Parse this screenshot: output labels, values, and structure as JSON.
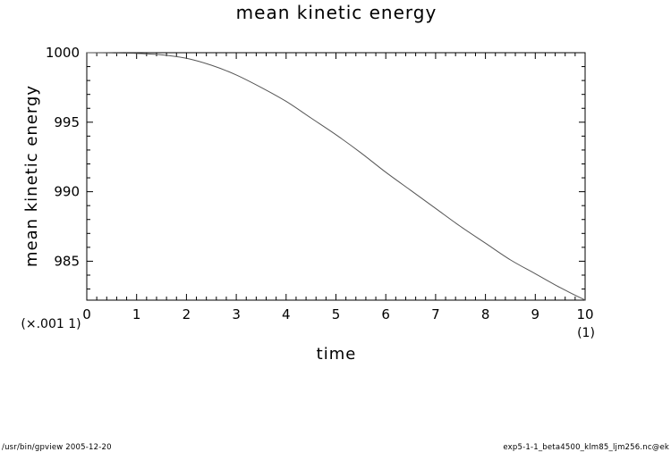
{
  "footer": {
    "left": "/usr/bin/gpview  2005-12-20",
    "right": "exp5-1-1_beta4500_klm85_ljm256.nc@ek"
  },
  "chart_data": {
    "type": "line",
    "title": "mean kinetic energy",
    "xlabel": "time",
    "ylabel": "mean kinetic energy",
    "x_unit_label": "(1)",
    "y_scale_label": "(×.001 1)",
    "xlim": [
      0,
      10
    ],
    "ylim": [
      982.2,
      1000
    ],
    "x_ticks": [
      "0",
      "1",
      "2",
      "3",
      "4",
      "5",
      "6",
      "7",
      "8",
      "9",
      "10"
    ],
    "y_ticks": [
      "985",
      "990",
      "995",
      "1000"
    ],
    "grid": false,
    "colors": {
      "line": "#555555",
      "axis": "#000000"
    },
    "series": [
      {
        "x": [
          0,
          0.5,
          1,
          1.5,
          2,
          2.5,
          3,
          3.5,
          4,
          4.5,
          5,
          5.5,
          6,
          6.5,
          7,
          7.5,
          8,
          8.5,
          9,
          9.5,
          10
        ],
        "values": [
          1000,
          999.98,
          999.95,
          999.85,
          999.6,
          999.1,
          998.4,
          997.5,
          996.5,
          995.3,
          994.1,
          992.8,
          991.4,
          990.1,
          988.8,
          987.5,
          986.3,
          985.1,
          984.1,
          983.1,
          982.2
        ]
      }
    ]
  }
}
